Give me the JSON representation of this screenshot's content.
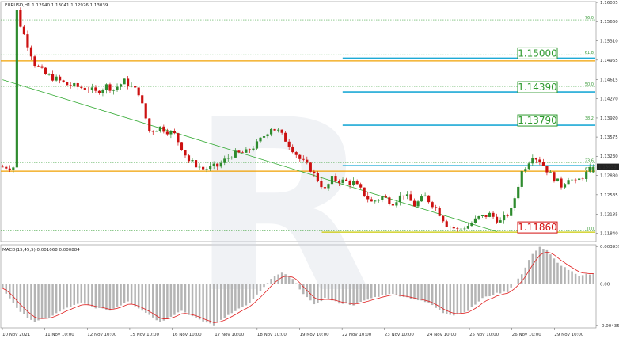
{
  "header": {
    "price_title": "EURUSD,H1  1.12940 1.13041 1.12926 1.13039",
    "macd_title": "MACD(15,45,5) 0.001068 0.000884"
  },
  "colors": {
    "bull": "#2e8b2e",
    "bear": "#cc1111",
    "orange_line": "#f0a000",
    "blue_line": "#1eaad6",
    "fib_green": "#4caa4c",
    "current_price_box": "#222222",
    "macd_hist": "#b4b4b4",
    "macd_signal": "#e02020",
    "trendline": "#33aa33",
    "watermark_letter": "R"
  },
  "chart_data": [
    {
      "type": "candlestick",
      "symbol": "EURUSD,H1",
      "open": 1.1294,
      "high": 1.13041,
      "low": 1.12926,
      "close": 1.13039,
      "current_price": "1.13039",
      "ylim": [
        1.1169,
        1.1602
      ],
      "y_ticks": [
        "1.16005",
        "1.15660",
        "1.15310",
        "1.14965",
        "1.14615",
        "1.14270",
        "1.13920",
        "1.13575",
        "1.13230",
        "1.12880",
        "1.12535",
        "1.12185",
        "1.11840"
      ],
      "x_ticks": [
        "10 Nov 2021",
        "11 Nov 10:00",
        "12 Nov 10:00",
        "15 Nov 10:00",
        "16 Nov 10:00",
        "17 Nov 10:00",
        "18 Nov 10:00",
        "19 Nov 10:00",
        "22 Nov 10:00",
        "23 Nov 10:00",
        "24 Nov 10:00",
        "25 Nov 10:00",
        "26 Nov 10:00",
        "29 Nov 10:00"
      ],
      "path_keypoints": [
        [
          1.1585,
          4
        ],
        [
          1.156,
          5
        ],
        [
          1.149,
          9
        ],
        [
          1.147,
          12
        ],
        [
          1.1462,
          15
        ],
        [
          1.1452,
          18
        ],
        [
          1.1448,
          21
        ],
        [
          1.1445,
          24
        ],
        [
          1.1438,
          26
        ],
        [
          1.145,
          29
        ],
        [
          1.1444,
          31
        ],
        [
          1.1458,
          34
        ],
        [
          1.1438,
          38
        ],
        [
          1.1368,
          41
        ],
        [
          1.1375,
          44
        ],
        [
          1.1362,
          48
        ],
        [
          1.1315,
          52
        ],
        [
          1.13,
          56
        ],
        [
          1.1305,
          60
        ],
        [
          1.1326,
          64
        ],
        [
          1.133,
          68
        ],
        [
          1.1345,
          71
        ],
        [
          1.1375,
          75
        ],
        [
          1.1368,
          77
        ],
        [
          1.1345,
          80
        ],
        [
          1.1318,
          83
        ],
        [
          1.13,
          86
        ],
        [
          1.1262,
          90
        ],
        [
          1.1282,
          92
        ],
        [
          1.1278,
          95
        ],
        [
          1.1275,
          98
        ],
        [
          1.1262,
          100
        ],
        [
          1.124,
          103
        ],
        [
          1.125,
          106
        ],
        [
          1.124,
          109
        ],
        [
          1.1255,
          112
        ],
        [
          1.1235,
          115
        ],
        [
          1.125,
          118
        ],
        [
          1.123,
          121
        ],
        [
          1.12,
          124
        ],
        [
          1.119,
          127
        ],
        [
          1.1198,
          130
        ],
        [
          1.1212,
          133
        ],
        [
          1.1218,
          136
        ],
        [
          1.1205,
          139
        ],
        [
          1.1225,
          142
        ],
        [
          1.1295,
          145
        ],
        [
          1.1325,
          148
        ],
        [
          1.1315,
          150
        ],
        [
          1.129,
          153
        ],
        [
          1.127,
          156
        ],
        [
          1.1285,
          158
        ],
        [
          1.1275,
          160
        ],
        [
          1.1292,
          163
        ],
        [
          1.13039,
          165
        ]
      ],
      "levels": [
        {
          "label": "1.15000",
          "price": 1.15,
          "style": "blue",
          "box": "green",
          "x_start": 0.575
        },
        {
          "label": "1.14390",
          "price": 1.1439,
          "style": "blue",
          "box": "green",
          "x_start": 0.575
        },
        {
          "label": "1.13790",
          "price": 1.1379,
          "style": "blue",
          "box": "green",
          "x_start": 0.575
        },
        {
          "label": "",
          "price": 1.1306,
          "style": "blue",
          "box": "",
          "x_start": 0.575
        },
        {
          "label": "1.11860",
          "price": 1.1186,
          "style": "yellow",
          "box": "red",
          "x_start": 0.54
        }
      ],
      "orange_levels": [
        1.1495,
        1.1296
      ],
      "fib_levels": [
        {
          "label": "76.0",
          "price": 1.1569
        },
        {
          "label": "61.8",
          "price": 1.1506
        },
        {
          "label": "50.0",
          "price": 1.1449
        },
        {
          "label": "38.2",
          "price": 1.1388
        },
        {
          "label": "23.6",
          "price": 1.1311
        },
        {
          "label": "61.8",
          "price": 1.1296
        },
        {
          "label": "0.0",
          "price": 1.1188
        }
      ],
      "trendline": {
        "from": [
          1.1461,
          0
        ],
        "to": [
          1.1187,
          138
        ]
      }
    },
    {
      "type": "histogram+line",
      "name": "MACD(15,45,5)",
      "macd": 0.001068,
      "signal": 0.000884,
      "ylim": [
        -0.00462,
        0.00412
      ],
      "y_ticks": [
        "0.003939",
        "0.00",
        "-0.004359"
      ],
      "macd_keypoints": [
        [
          -0.0005,
          0
        ],
        [
          -0.003,
          5
        ],
        [
          -0.004,
          9
        ],
        [
          -0.0035,
          13
        ],
        [
          -0.0025,
          18
        ],
        [
          -0.002,
          22
        ],
        [
          -0.0025,
          26
        ],
        [
          -0.0028,
          30
        ],
        [
          -0.0018,
          35
        ],
        [
          -0.003,
          40
        ],
        [
          -0.004,
          44
        ],
        [
          -0.0028,
          50
        ],
        [
          -0.0038,
          55
        ],
        [
          -0.0043,
          59
        ],
        [
          -0.003,
          64
        ],
        [
          -0.002,
          69
        ],
        [
          0.0005,
          75
        ],
        [
          0.0012,
          78
        ],
        [
          0.0005,
          81
        ],
        [
          -0.001,
          84
        ],
        [
          -0.0022,
          87
        ],
        [
          -0.0015,
          90
        ],
        [
          -0.002,
          94
        ],
        [
          -0.0022,
          98
        ],
        [
          -0.0015,
          103
        ],
        [
          -0.001,
          108
        ],
        [
          -0.0015,
          114
        ],
        [
          -0.002,
          119
        ],
        [
          -0.003,
          123
        ],
        [
          -0.0033,
          126
        ],
        [
          -0.0028,
          130
        ],
        [
          -0.0015,
          134
        ],
        [
          -0.001,
          138
        ],
        [
          -0.0008,
          141
        ],
        [
          0.001,
          145
        ],
        [
          0.0032,
          148
        ],
        [
          0.0039,
          150
        ],
        [
          0.0035,
          152
        ],
        [
          0.0022,
          155
        ],
        [
          0.0015,
          158
        ],
        [
          0.0008,
          161
        ],
        [
          0.001,
          163
        ],
        [
          0.001068,
          165
        ]
      ]
    }
  ]
}
